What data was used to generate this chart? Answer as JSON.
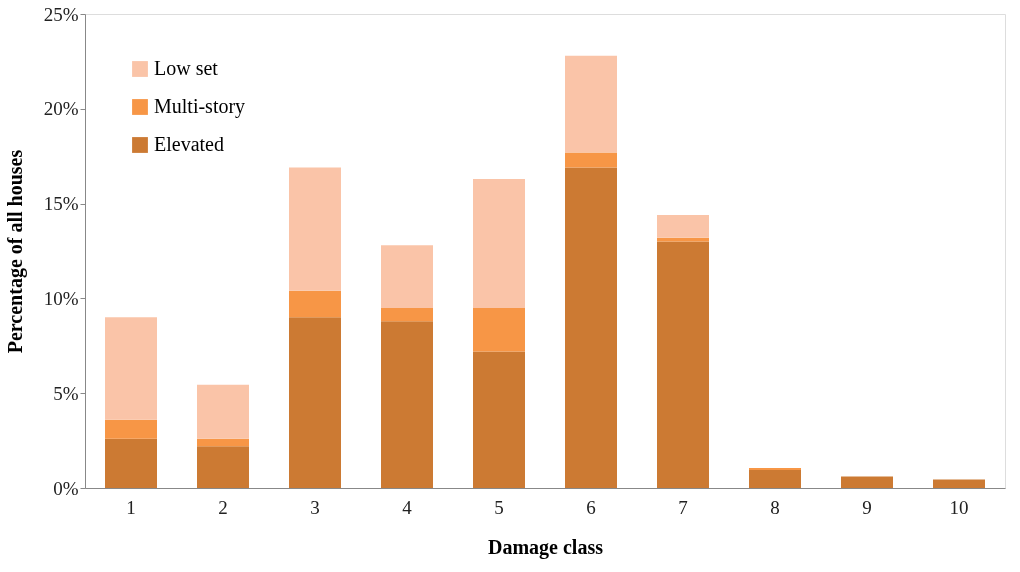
{
  "chart_data": {
    "type": "bar",
    "stacked": true,
    "xlabel": "Damage class",
    "ylabel": "Percentage of all houses",
    "categories": [
      "1",
      "2",
      "3",
      "4",
      "5",
      "6",
      "7",
      "8",
      "9",
      "10"
    ],
    "series": [
      {
        "name": "Elevated",
        "color": "#cc7a33",
        "values": [
          2.6,
          2.2,
          9.0,
          8.8,
          7.2,
          16.9,
          13.0,
          0.95,
          0.6,
          0.45
        ]
      },
      {
        "name": "Multi-story",
        "color": "#f79646",
        "values": [
          1.0,
          0.4,
          1.4,
          0.7,
          2.3,
          0.8,
          0.2,
          0.1,
          0,
          0
        ]
      },
      {
        "name": "Low set",
        "color": "#fac4a8",
        "values": [
          5.4,
          2.85,
          6.5,
          3.3,
          6.8,
          5.1,
          1.2,
          0,
          0,
          0
        ]
      }
    ],
    "ylim": [
      0,
      25
    ],
    "yticks": [
      {
        "value": 0,
        "label": "0%"
      },
      {
        "value": 5,
        "label": "5%"
      },
      {
        "value": 10,
        "label": "10%"
      },
      {
        "value": 15,
        "label": "15%"
      },
      {
        "value": 20,
        "label": "20%"
      },
      {
        "value": 25,
        "label": "25%"
      }
    ],
    "grid": false,
    "legend": "top left"
  }
}
